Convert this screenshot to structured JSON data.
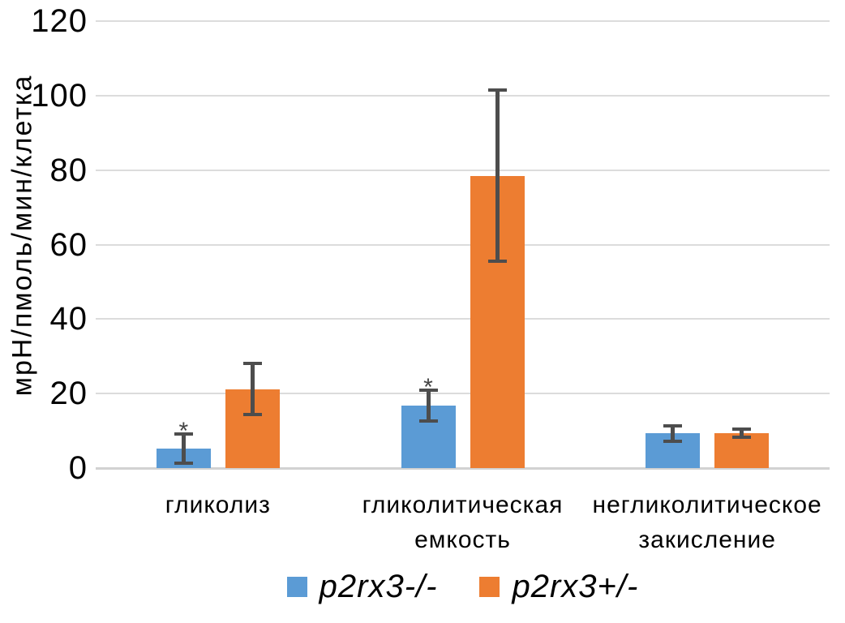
{
  "chart_data": {
    "type": "bar",
    "title": "",
    "xlabel": "",
    "ylabel": "мрН/пмоль/мин/клетка",
    "ylim": [
      0,
      120
    ],
    "yticks": [
      0,
      20,
      40,
      60,
      80,
      100,
      120
    ],
    "grid": true,
    "legend_position": "bottom",
    "categories": [
      "гликолиз",
      "гликолитическая емкость",
      "негликолитическое закисление"
    ],
    "categories_lines": [
      [
        "гликолиз"
      ],
      [
        "гликолитическая",
        "емкость"
      ],
      [
        "негликолитическое",
        "закисление"
      ]
    ],
    "series": [
      {
        "name": "p2rx3-/-",
        "color": "#5B9BD5",
        "values": [
          5.2,
          16.8,
          9.3
        ],
        "errors": [
          4.0,
          4.2,
          2.1
        ],
        "significance": [
          "*",
          "*",
          null
        ]
      },
      {
        "name": "p2rx3+/-",
        "color": "#ED7D31",
        "values": [
          21.2,
          78.5,
          9.3
        ],
        "errors": [
          6.8,
          23.0,
          1.1
        ],
        "significance": [
          null,
          null,
          null
        ]
      }
    ],
    "colors": {
      "error_bar": "#4d4d4d",
      "gridline": "#dcdcdc",
      "axis_line": "#d2d2d2",
      "significance_marker": "#444444",
      "text": "#000000"
    }
  }
}
